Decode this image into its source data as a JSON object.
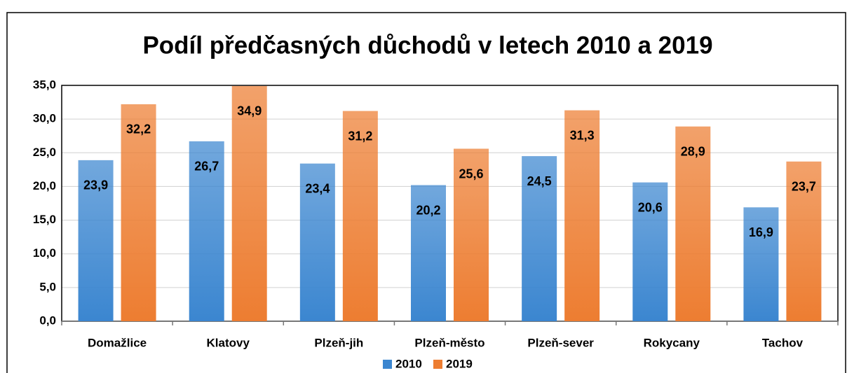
{
  "chart_data": {
    "type": "bar",
    "title": "Podíl předčasných důchodů v letech 2010 a 2019",
    "categories": [
      "Domažlice",
      "Klatovy",
      "Plzeň-jih",
      "Plzeň-město",
      "Plzeň-sever",
      "Rokycany",
      "Tachov"
    ],
    "series": [
      {
        "name": "2010",
        "color": "#3b86d0",
        "values": [
          23.9,
          26.7,
          23.4,
          20.2,
          24.5,
          20.6,
          16.9
        ],
        "value_labels": [
          "23,9",
          "26,7",
          "23,4",
          "20,2",
          "24,5",
          "20,6",
          "16,9"
        ]
      },
      {
        "name": "2019",
        "color": "#ed7d31",
        "values": [
          32.2,
          34.9,
          31.2,
          25.6,
          31.3,
          28.9,
          23.7
        ],
        "value_labels": [
          "32,2",
          "34,9",
          "31,2",
          "25,6",
          "31,3",
          "28,9",
          "23,7"
        ]
      }
    ],
    "ylim": [
      0,
      35
    ],
    "yticks": [
      {
        "value": 0,
        "label": "0,0"
      },
      {
        "value": 5,
        "label": "5,0"
      },
      {
        "value": 10,
        "label": "10,0"
      },
      {
        "value": 15,
        "label": "15,0"
      },
      {
        "value": 20,
        "label": "20,0"
      },
      {
        "value": 25,
        "label": "25,0"
      },
      {
        "value": 30,
        "label": "30,0"
      },
      {
        "value": 35,
        "label": "35,0"
      }
    ],
    "grid": true,
    "legend": "bottom"
  }
}
